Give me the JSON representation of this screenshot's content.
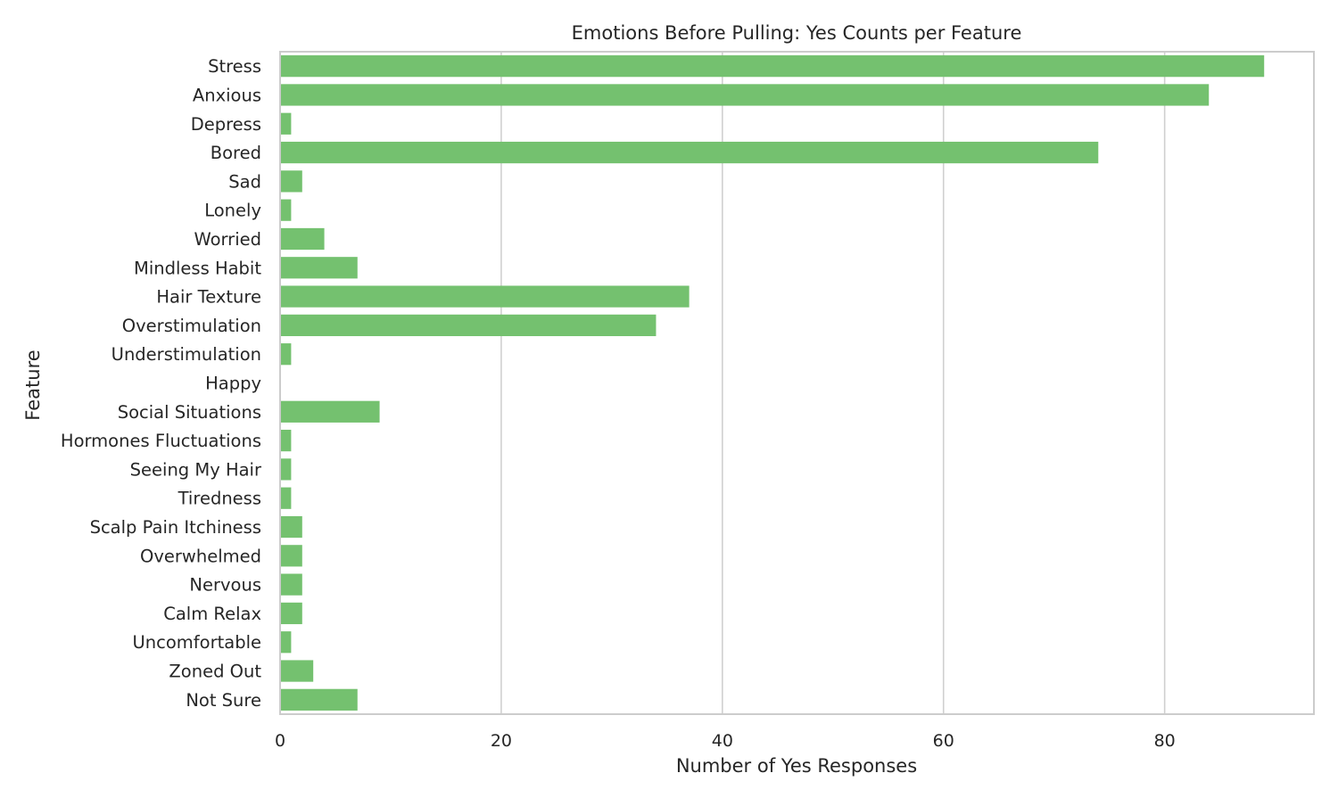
{
  "chart_data": {
    "type": "bar",
    "orientation": "horizontal",
    "title": "Emotions Before Pulling: Yes Counts per Feature",
    "xlabel": "Number of Yes Responses",
    "ylabel": "Feature",
    "categories": [
      "Stress",
      "Anxious",
      "Depress",
      "Bored",
      "Sad",
      "Lonely",
      "Worried",
      "Mindless Habit",
      "Hair Texture",
      "Overstimulation",
      "Understimulation",
      "Happy",
      "Social Situations",
      "Hormones Fluctuations",
      "Seeing My Hair",
      "Tiredness",
      "Scalp Pain Itchiness",
      "Overwhelmed",
      "Nervous",
      "Calm Relax",
      "Uncomfortable",
      "Zoned Out",
      "Not Sure"
    ],
    "values": [
      89,
      84,
      1,
      74,
      2,
      1,
      4,
      7,
      37,
      34,
      1,
      0,
      9,
      1,
      1,
      1,
      2,
      2,
      2,
      2,
      1,
      3,
      7
    ],
    "xlim": [
      0,
      93.5
    ],
    "xticks": [
      0,
      20,
      40,
      60,
      80
    ],
    "grid": "x",
    "bar_color": "#74c16f",
    "grid_color": "#d0d0d0",
    "spine_color": "#cccccc"
  }
}
